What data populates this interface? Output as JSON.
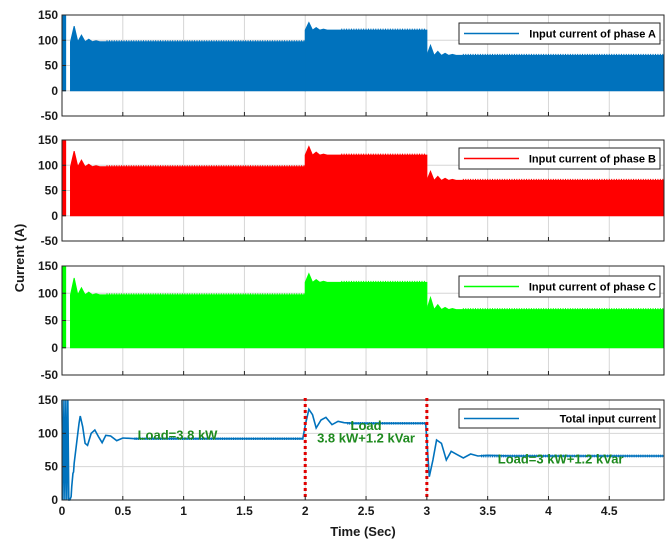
{
  "chart_data": [
    {
      "type": "line",
      "panel": "A",
      "series": [
        {
          "name": "Input current of phase A",
          "color": "#0072bd",
          "envelope": [
            {
              "t0": 0.0,
              "t1": 0.03,
              "lo": 0,
              "hi": 150
            },
            {
              "t0": 0.03,
              "t1": 0.07,
              "lo": 0,
              "hi": 0
            },
            {
              "t0": 0.07,
              "t1": 2.0,
              "lo": 0,
              "hi": 97,
              "overshoot": [
                128,
                110,
                102,
                99
              ]
            },
            {
              "t0": 2.0,
              "t1": 3.0,
              "lo": 0,
              "hi": 120,
              "overshoot": [
                135,
                125,
                122
              ]
            },
            {
              "t0": 3.0,
              "t1": 4.95,
              "lo": 0,
              "hi": 70,
              "overshoot": [
                90,
                78,
                74,
                72
              ]
            }
          ]
        }
      ],
      "xlim": [
        0,
        4.95
      ],
      "ylim": [
        -50,
        150
      ],
      "yticks": [
        "150",
        "100",
        "50",
        "0",
        "-50"
      ],
      "grid": true,
      "legend_position": "top-right"
    },
    {
      "type": "line",
      "panel": "B",
      "series": [
        {
          "name": "Input current of phase B",
          "color": "#ff0000",
          "envelope": [
            {
              "t0": 0.0,
              "t1": 0.03,
              "lo": 0,
              "hi": 150
            },
            {
              "t0": 0.03,
              "t1": 0.07,
              "lo": 0,
              "hi": 0
            },
            {
              "t0": 0.07,
              "t1": 2.0,
              "lo": 0,
              "hi": 97,
              "overshoot": [
                128,
                110,
                102,
                99
              ]
            },
            {
              "t0": 2.0,
              "t1": 3.0,
              "lo": 0,
              "hi": 120,
              "overshoot": [
                137,
                126,
                122
              ]
            },
            {
              "t0": 3.0,
              "t1": 4.95,
              "lo": 0,
              "hi": 70,
              "overshoot": [
                88,
                78,
                74,
                72
              ]
            }
          ]
        }
      ],
      "xlim": [
        0,
        4.95
      ],
      "ylim": [
        -50,
        150
      ],
      "yticks": [
        "150",
        "100",
        "50",
        "0",
        "-50"
      ],
      "grid": true,
      "legend_position": "top-right"
    },
    {
      "type": "line",
      "panel": "C",
      "series": [
        {
          "name": "Input current of phase C",
          "color": "#00ff00",
          "envelope": [
            {
              "t0": 0.0,
              "t1": 0.03,
              "lo": 0,
              "hi": 150
            },
            {
              "t0": 0.03,
              "t1": 0.07,
              "lo": 0,
              "hi": 0
            },
            {
              "t0": 0.07,
              "t1": 2.0,
              "lo": 0,
              "hi": 97,
              "overshoot": [
                128,
                110,
                102,
                99
              ]
            },
            {
              "t0": 2.0,
              "t1": 3.0,
              "lo": 0,
              "hi": 120,
              "overshoot": [
                136,
                125,
                122
              ]
            },
            {
              "t0": 3.0,
              "t1": 4.95,
              "lo": 0,
              "hi": 70,
              "overshoot": [
                92,
                79,
                74,
                72
              ]
            }
          ]
        }
      ],
      "xlim": [
        0,
        4.95
      ],
      "ylim": [
        -50,
        150
      ],
      "yticks": [
        "150",
        "100",
        "50",
        "0",
        "-50"
      ],
      "grid": true,
      "legend_position": "top-right"
    },
    {
      "type": "line",
      "panel": "Total",
      "series": [
        {
          "name": "Total input current",
          "color": "#0072bd",
          "points": [
            [
              0.0,
              150
            ],
            [
              0.008,
              0
            ],
            [
              0.016,
              150
            ],
            [
              0.024,
              0
            ],
            [
              0.032,
              150
            ],
            [
              0.04,
              0
            ],
            [
              0.048,
              150
            ],
            [
              0.056,
              0
            ],
            [
              0.064,
              0
            ],
            [
              0.075,
              5
            ],
            [
              0.08,
              20
            ],
            [
              0.09,
              40
            ],
            [
              0.095,
              42
            ],
            [
              0.1,
              55
            ],
            [
              0.12,
              85
            ],
            [
              0.14,
              115
            ],
            [
              0.15,
              126
            ],
            [
              0.17,
              110
            ],
            [
              0.19,
              85
            ],
            [
              0.21,
              82
            ],
            [
              0.24,
              100
            ],
            [
              0.27,
              105
            ],
            [
              0.3,
              95
            ],
            [
              0.33,
              86
            ],
            [
              0.36,
              97
            ],
            [
              0.4,
              96
            ],
            [
              0.45,
              89
            ],
            [
              0.5,
              93
            ],
            [
              0.6,
              92
            ],
            [
              1.0,
              92
            ],
            [
              1.5,
              92
            ],
            [
              1.98,
              92
            ],
            [
              2.0,
              112
            ],
            [
              2.03,
              136
            ],
            [
              2.06,
              128
            ],
            [
              2.09,
              108
            ],
            [
              2.13,
              120
            ],
            [
              2.17,
              124
            ],
            [
              2.22,
              113
            ],
            [
              2.27,
              118
            ],
            [
              2.32,
              116
            ],
            [
              2.4,
              115
            ],
            [
              2.6,
              115
            ],
            [
              2.8,
              115
            ],
            [
              2.99,
              115
            ],
            [
              3.0,
              90
            ],
            [
              3.02,
              35
            ],
            [
              3.05,
              60
            ],
            [
              3.08,
              90
            ],
            [
              3.12,
              85
            ],
            [
              3.16,
              60
            ],
            [
              3.2,
              73
            ],
            [
              3.25,
              68
            ],
            [
              3.3,
              63
            ],
            [
              3.36,
              69
            ],
            [
              3.42,
              66
            ],
            [
              3.5,
              67
            ],
            [
              3.7,
              66
            ],
            [
              4.0,
              66
            ],
            [
              4.5,
              66
            ],
            [
              4.95,
              66
            ]
          ]
        }
      ],
      "xlim": [
        0,
        4.95
      ],
      "ylim": [
        0,
        150
      ],
      "yticks": [
        "150",
        "100",
        "50",
        "0"
      ],
      "grid": true,
      "legend_position": "top-right",
      "markers": [
        2,
        3
      ],
      "marker_color": "#e00000",
      "annotations": [
        {
          "text": "Load=3.8 kW",
          "x": 0.95,
          "y": 91
        },
        {
          "text": "Load",
          "x": 2.5,
          "y": 105
        },
        {
          "text": "3.8 kW+1.2 kVar",
          "x": 2.5,
          "y": 86
        },
        {
          "text": "Load=3 kW+1.2 kVar",
          "x": 4.1,
          "y": 55
        }
      ]
    }
  ],
  "shared": {
    "ylabel": "Current (A)",
    "xlabel": "Time (Sec)",
    "xticks": [
      "0",
      "0.5",
      "1",
      "1.5",
      "2",
      "2.5",
      "3",
      "3.5",
      "4",
      "4.5"
    ]
  }
}
